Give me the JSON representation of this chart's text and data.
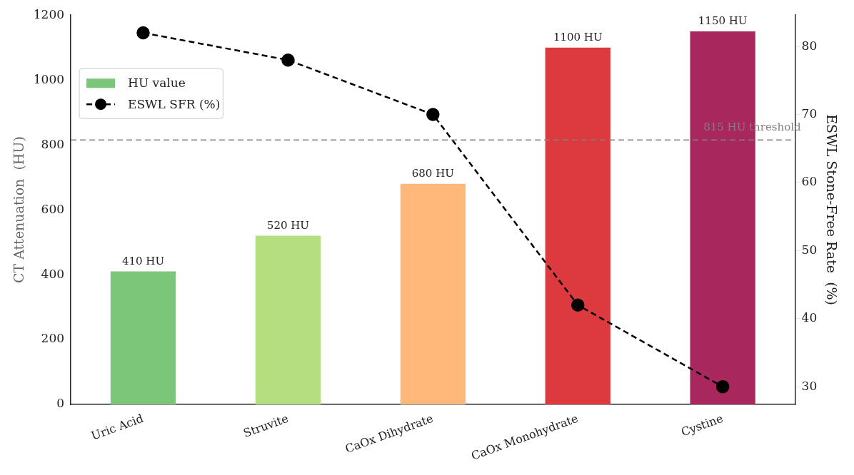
{
  "chart_data": {
    "type": "bar",
    "xlabel": null,
    "ylabel": "CT Attenuation  (HU)",
    "y2label": "ESWL Stone-Free Rate  (%)",
    "categories": [
      "Uric Acid",
      "Struvite",
      "CaOx Dihydrate",
      "CaOx Monohydrate",
      "Cystine"
    ],
    "series": [
      {
        "name": "HU value",
        "colors": [
          "#7ac77a",
          "#b3df7e",
          "#fdb87a",
          "#dc3a3e",
          "#a8275c"
        ],
        "values": [
          410,
          520,
          680,
          1100,
          1150
        ],
        "value_labels": [
          "410 HU",
          "520 HU",
          "680 HU",
          "1100 HU",
          "1150 HU"
        ]
      },
      {
        "name": "ESWL SFR (%)",
        "type": "line",
        "axis": "y2",
        "color": "#000000",
        "values": [
          82,
          78,
          70,
          42,
          30
        ],
        "marker": "circle",
        "line_style": "dashed"
      }
    ],
    "ylim": [
      0,
      1200
    ],
    "yticks": [
      0,
      200,
      400,
      600,
      800,
      1000,
      1200
    ],
    "y2lim": [
      27.4,
      84.6
    ],
    "y2ticks": [
      30,
      40,
      50,
      60,
      70,
      80
    ],
    "ref_lines": [
      {
        "axis": "y",
        "value": 815,
        "label": "815 HU threshold",
        "color": "#808080",
        "line_style": "dashed"
      }
    ],
    "legend": "top left",
    "grid": false
  }
}
